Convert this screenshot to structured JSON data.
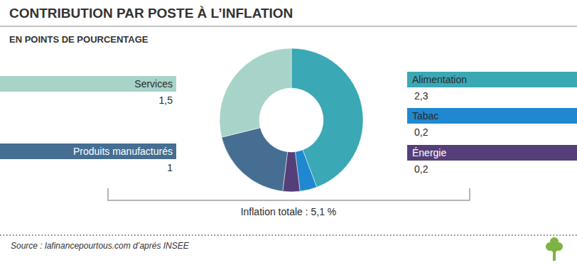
{
  "chart_data": {
    "type": "pie",
    "title": "CONTRIBUTION PAR POSTE À L’INFLATION",
    "subtitle": "EN POINTS DE POURCENTAGE",
    "categories": [
      "Alimentation",
      "Tabac",
      "Énergie",
      "Produits manufacturés",
      "Services"
    ],
    "values": [
      2.3,
      0.2,
      0.2,
      1,
      1.5
    ],
    "value_labels": [
      "2,3",
      "0,2",
      "0,2",
      "1",
      "1,5"
    ],
    "colors": [
      "#3aa8b5",
      "#1f88d0",
      "#553f78",
      "#456e92",
      "#a8d3c9"
    ],
    "data_labels": true,
    "annotations": [
      "Inflation totale : 5,1 %"
    ],
    "source": "Source : lafinancepourtous.com d’aprés INSEE"
  }
}
